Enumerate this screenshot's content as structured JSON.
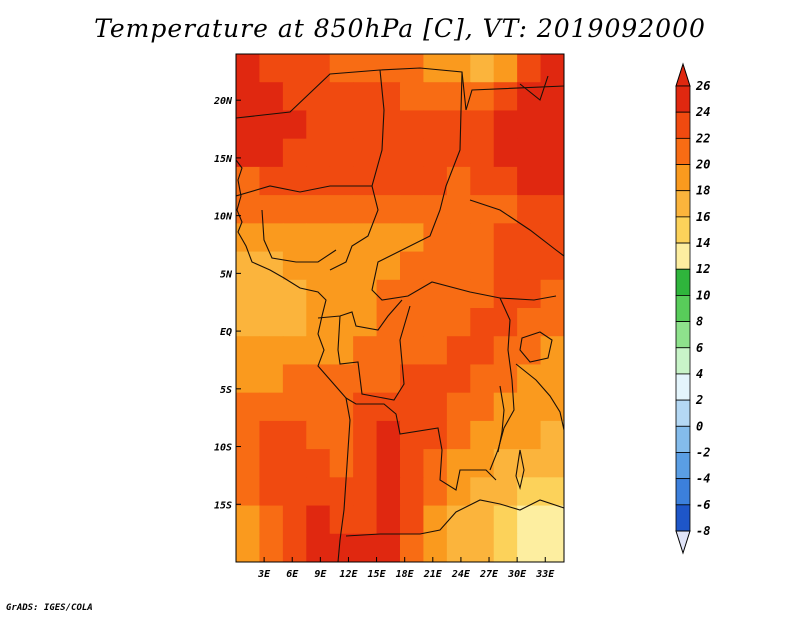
{
  "chart_data": {
    "type": "heatmap",
    "title": "Temperature at 850hPa [C], VT: 2019092000",
    "credit": "GrADS: IGES/COLA",
    "xlim": [
      0,
      35
    ],
    "ylim": [
      -20,
      24
    ],
    "x_ticks": [
      3,
      6,
      9,
      12,
      15,
      18,
      21,
      24,
      27,
      30,
      33
    ],
    "x_tick_labels": [
      "3E",
      "6E",
      "9E",
      "12E",
      "15E",
      "18E",
      "21E",
      "24E",
      "27E",
      "30E",
      "33E"
    ],
    "y_ticks": [
      20,
      15,
      10,
      5,
      0,
      -5,
      -10,
      -15
    ],
    "y_tick_labels": [
      "20N",
      "15N",
      "10N",
      "5N",
      "EQ",
      "5S",
      "10S",
      "15S"
    ],
    "colorbar": {
      "levels": [
        26,
        24,
        22,
        20,
        18,
        16,
        14,
        12,
        10,
        8,
        6,
        4,
        2,
        0,
        -2,
        -4,
        -6,
        -8
      ],
      "level_labels": [
        "26",
        "24",
        "22",
        "20",
        "18",
        "16",
        "14",
        "12",
        "10",
        "8",
        "6",
        "4",
        "2",
        "0",
        "-2",
        "-4",
        "-6",
        "-8"
      ],
      "colors": [
        "#e02810",
        "#f04a10",
        "#f86c14",
        "#fa9a1e",
        "#fbb43c",
        "#fcd25a",
        "#fdeea0",
        "#2fb53c",
        "#58cc5a",
        "#8ee28c",
        "#c8f4c8",
        "#e4f5fc",
        "#b4d8f4",
        "#84bcec",
        "#5a9ee4",
        "#3c80dc",
        "#1e56c8",
        "#0c36a0",
        "#081a6e"
      ],
      "over_color": "#e02810",
      "under_color": "#e0e4f8"
    },
    "field": {
      "cols": 14,
      "rows": 18,
      "values": [
        [
          24,
          23,
          23,
          22,
          21,
          21,
          21,
          20,
          19,
          18,
          17,
          19,
          23,
          25
        ],
        [
          25,
          24,
          23,
          22,
          23,
          22,
          22,
          21,
          21,
          20,
          21,
          23,
          25,
          25
        ],
        [
          25,
          24,
          24,
          23,
          23,
          23,
          23,
          23,
          22,
          22,
          22,
          24,
          25,
          25
        ],
        [
          24,
          24,
          23,
          23,
          23,
          23,
          23,
          23,
          22,
          22,
          23,
          24,
          25,
          25
        ],
        [
          21,
          22,
          22,
          22,
          22,
          22,
          22,
          22,
          22,
          21,
          22,
          23,
          24,
          24
        ],
        [
          20,
          20,
          21,
          21,
          21,
          20,
          20,
          20,
          20,
          20,
          20,
          21,
          22,
          23
        ],
        [
          18,
          18,
          19,
          19,
          19,
          19,
          19,
          19,
          20,
          20,
          21,
          22,
          23,
          22
        ],
        [
          17,
          17,
          18,
          18,
          19,
          19,
          19,
          20,
          20,
          20,
          21,
          22,
          23,
          22
        ],
        [
          17,
          17,
          17,
          18,
          18,
          19,
          20,
          20,
          20,
          20,
          21,
          22,
          22,
          21
        ],
        [
          17,
          17,
          17,
          18,
          18,
          19,
          20,
          20,
          20,
          21,
          22,
          22,
          21,
          20
        ],
        [
          18,
          18,
          19,
          19,
          19,
          20,
          20,
          21,
          21,
          22,
          22,
          21,
          20,
          19
        ],
        [
          19,
          19,
          20,
          20,
          20,
          21,
          21,
          22,
          22,
          22,
          21,
          20,
          19,
          18
        ],
        [
          20,
          21,
          21,
          20,
          21,
          22,
          23,
          23,
          22,
          21,
          20,
          19,
          18,
          18
        ],
        [
          21,
          22,
          22,
          21,
          21,
          23,
          24,
          23,
          22,
          20,
          19,
          18,
          18,
          17
        ],
        [
          21,
          22,
          23,
          22,
          21,
          22,
          24,
          23,
          21,
          19,
          18,
          17,
          16,
          16
        ],
        [
          20,
          22,
          23,
          23,
          22,
          23,
          24,
          23,
          20,
          18,
          17,
          16,
          15,
          14
        ],
        [
          19,
          21,
          23,
          24,
          23,
          23,
          24,
          22,
          19,
          17,
          16,
          15,
          13,
          12
        ],
        [
          18,
          20,
          22,
          24,
          24,
          24,
          24,
          21,
          18,
          17,
          16,
          14,
          12,
          12
        ]
      ]
    }
  }
}
